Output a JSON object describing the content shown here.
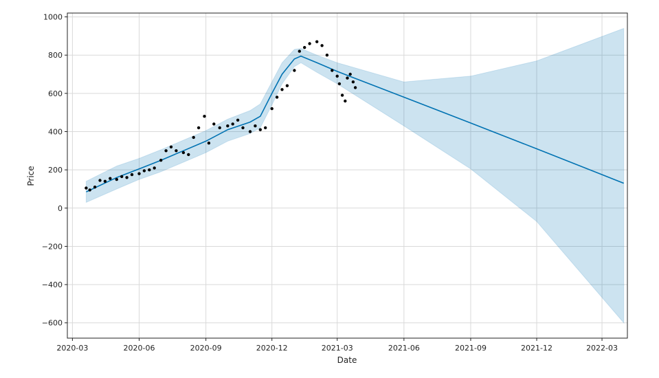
{
  "chart_data": {
    "type": "line",
    "title": "",
    "xlabel": "Date",
    "ylabel": "Price",
    "xlim": [
      "2020-02-23",
      "2022-04-05"
    ],
    "ylim": [
      -680,
      1020
    ],
    "grid": true,
    "x_ticks": [
      "2020-03",
      "2020-06",
      "2020-09",
      "2020-12",
      "2021-03",
      "2021-06",
      "2021-09",
      "2021-12",
      "2022-03"
    ],
    "y_ticks": [
      -600,
      -400,
      -200,
      0,
      200,
      400,
      600,
      800,
      1000
    ],
    "colors": {
      "forecast_line": "#0072B2",
      "interval_fill": "#0072B2",
      "observed_points": "#000000"
    },
    "forecast": {
      "x": [
        "2020-03-20",
        "2020-05-01",
        "2020-06-01",
        "2020-07-01",
        "2020-08-01",
        "2020-09-01",
        "2020-10-01",
        "2020-11-01",
        "2020-11-15",
        "2020-12-01",
        "2020-12-15",
        "2021-01-01",
        "2021-01-10",
        "2021-02-01",
        "2021-03-01",
        "2021-06-01",
        "2021-09-01",
        "2021-12-01",
        "2022-03-31"
      ],
      "yhat": [
        85,
        160,
        205,
        250,
        300,
        350,
        410,
        450,
        480,
        600,
        700,
        780,
        795,
        760,
        715,
        580,
        445,
        310,
        130
      ],
      "yhat_lower": [
        30,
        100,
        150,
        190,
        240,
        290,
        350,
        390,
        420,
        540,
        650,
        740,
        760,
        710,
        650,
        430,
        205,
        -70,
        -600
      ],
      "yhat_upper": [
        140,
        220,
        260,
        305,
        355,
        405,
        465,
        510,
        545,
        660,
        760,
        830,
        835,
        800,
        760,
        660,
        690,
        770,
        940
      ]
    },
    "observed": {
      "x": [
        "2020-03-20",
        "2020-03-25",
        "2020-04-01",
        "2020-04-08",
        "2020-04-15",
        "2020-04-22",
        "2020-05-01",
        "2020-05-08",
        "2020-05-15",
        "2020-05-22",
        "2020-06-01",
        "2020-06-08",
        "2020-06-15",
        "2020-06-22",
        "2020-07-01",
        "2020-07-08",
        "2020-07-15",
        "2020-07-22",
        "2020-08-01",
        "2020-08-08",
        "2020-08-15",
        "2020-08-22",
        "2020-08-30",
        "2020-09-05",
        "2020-09-12",
        "2020-09-20",
        "2020-10-01",
        "2020-10-08",
        "2020-10-15",
        "2020-10-22",
        "2020-11-01",
        "2020-11-08",
        "2020-11-15",
        "2020-11-22",
        "2020-12-01",
        "2020-12-08",
        "2020-12-15",
        "2020-12-22",
        "2021-01-01",
        "2021-01-08",
        "2021-01-15",
        "2021-01-22",
        "2021-02-01",
        "2021-02-08",
        "2021-02-15",
        "2021-02-22",
        "2021-03-01",
        "2021-03-04",
        "2021-03-08",
        "2021-03-12",
        "2021-03-15",
        "2021-03-19",
        "2021-03-23",
        "2021-03-26"
      ],
      "y": [
        105,
        95,
        110,
        145,
        140,
        155,
        150,
        165,
        160,
        175,
        180,
        195,
        200,
        210,
        250,
        300,
        320,
        300,
        290,
        280,
        370,
        420,
        480,
        340,
        440,
        420,
        430,
        440,
        460,
        420,
        400,
        430,
        410,
        420,
        520,
        580,
        620,
        640,
        720,
        820,
        840,
        860,
        870,
        850,
        800,
        720,
        690,
        650,
        590,
        560,
        680,
        700,
        660,
        630
      ]
    }
  }
}
